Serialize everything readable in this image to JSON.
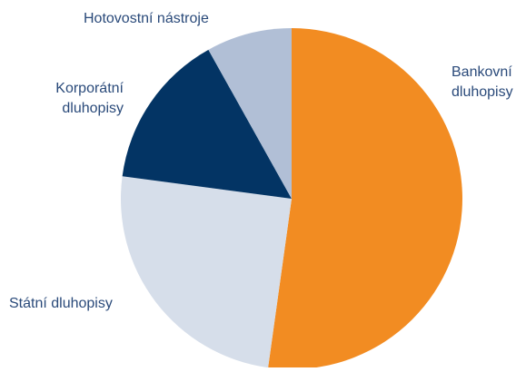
{
  "chart_data": {
    "type": "pie",
    "title": "",
    "slices": [
      {
        "label": "Bankovní dluhopisy",
        "label_lines": [
          "Bankovní",
          "dluhopisy"
        ],
        "value": 52.2,
        "color": "#f28c22"
      },
      {
        "label": "Státní dluhopisy",
        "label_lines": [
          "Státní dluhopisy"
        ],
        "value": 24.9,
        "color": "#d6deea"
      },
      {
        "label": "Korporátní dluhopisy",
        "label_lines": [
          "Korporátní",
          "dluhopisy"
        ],
        "value": 14.8,
        "color": "#033464"
      },
      {
        "label": "Hotovostní nástroje",
        "label_lines": [
          "Hotovostní nástroje"
        ],
        "value": 8.1,
        "color": "#b1bfd6"
      }
    ]
  }
}
